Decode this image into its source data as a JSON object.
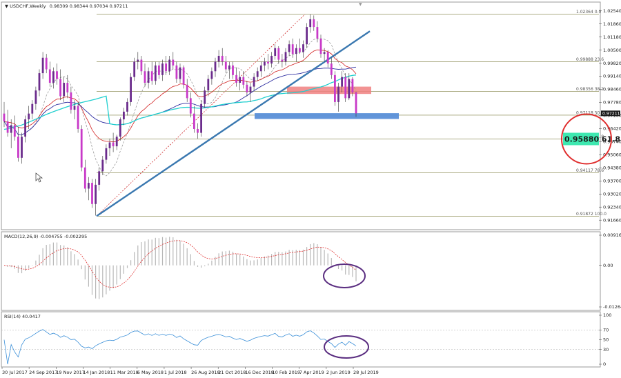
{
  "header": {
    "symbol_label": "USDCHF,Weekly",
    "ohlc_label": "0.98309 0.98344 0.97034 0.97211"
  },
  "colors": {
    "bull": "#6b2c8c",
    "bear": "#c839c8",
    "trend": "#3a78b0",
    "ma_red": "#d22020",
    "ma_blue": "#2c2ca0",
    "ma_cyan": "#1fcfcf",
    "ma_gray": "#909090",
    "zone_red": "#f08080",
    "zone_blue": "#5a8fd8",
    "circle_red": "#e03030",
    "circle_purple": "#5a2d80",
    "price_box": "#3ee8b0",
    "macd_hist": "#b8b8b8",
    "macd_signal": "#e03030",
    "rsi_line": "#3a8fd8"
  },
  "chart_data": [
    {
      "type": "candlestick",
      "price_axis": {
        "ylim": [
          0.9156,
          1.026
        ],
        "tick_labels": [
          "1.02540",
          "1.01860",
          "1.01180",
          "1.00500",
          "0.99820",
          "0.99140",
          "0.98460",
          "0.97780",
          "0.97100",
          "0.96420",
          "0.95740",
          "0.95060",
          "0.94380",
          "0.93700",
          "0.93020",
          "0.92340",
          "0.91660"
        ]
      },
      "time_axis": {
        "labels": [
          "30 Jul 2017",
          "24 Sep 2017",
          "19 Nov 2017",
          "14 Jan 2018",
          "11 Mar 2018",
          "6 May 2018",
          "1 Jul 2018",
          "26 Aug 2018",
          "21 Oct 2018",
          "16 Dec 2018",
          "10 Feb 2019",
          "7 Apr 2019",
          "2 Jun 2019",
          "28 Jul 2019"
        ]
      },
      "candles": [
        {
          "o": 0.972,
          "h": 0.978,
          "l": 0.965,
          "c": 0.968
        },
        {
          "o": 0.968,
          "h": 0.974,
          "l": 0.96,
          "c": 0.962
        },
        {
          "o": 0.962,
          "h": 0.969,
          "l": 0.954,
          "c": 0.966
        },
        {
          "o": 0.966,
          "h": 0.971,
          "l": 0.958,
          "c": 0.96
        },
        {
          "o": 0.96,
          "h": 0.965,
          "l": 0.947,
          "c": 0.949
        },
        {
          "o": 0.949,
          "h": 0.962,
          "l": 0.946,
          "c": 0.96
        },
        {
          "o": 0.96,
          "h": 0.971,
          "l": 0.957,
          "c": 0.969
        },
        {
          "o": 0.969,
          "h": 0.976,
          "l": 0.964,
          "c": 0.972
        },
        {
          "o": 0.972,
          "h": 0.979,
          "l": 0.969,
          "c": 0.977
        },
        {
          "o": 0.977,
          "h": 0.986,
          "l": 0.974,
          "c": 0.984
        },
        {
          "o": 0.984,
          "h": 0.995,
          "l": 0.981,
          "c": 0.993
        },
        {
          "o": 0.993,
          "h": 1.004,
          "l": 0.99,
          "c": 1.001
        },
        {
          "o": 1.001,
          "h": 1.003,
          "l": 0.993,
          "c": 0.995
        },
        {
          "o": 0.995,
          "h": 0.999,
          "l": 0.986,
          "c": 0.988
        },
        {
          "o": 0.988,
          "h": 0.996,
          "l": 0.985,
          "c": 0.994
        },
        {
          "o": 0.994,
          "h": 0.998,
          "l": 0.987,
          "c": 0.99
        },
        {
          "o": 0.99,
          "h": 0.995,
          "l": 0.979,
          "c": 0.981
        },
        {
          "o": 0.981,
          "h": 0.991,
          "l": 0.978,
          "c": 0.988
        },
        {
          "o": 0.988,
          "h": 0.992,
          "l": 0.98,
          "c": 0.983
        },
        {
          "o": 0.983,
          "h": 0.986,
          "l": 0.972,
          "c": 0.974
        },
        {
          "o": 0.974,
          "h": 0.979,
          "l": 0.969,
          "c": 0.976
        },
        {
          "o": 0.976,
          "h": 0.978,
          "l": 0.962,
          "c": 0.964
        },
        {
          "o": 0.964,
          "h": 0.966,
          "l": 0.942,
          "c": 0.944
        },
        {
          "o": 0.944,
          "h": 0.948,
          "l": 0.931,
          "c": 0.933
        },
        {
          "o": 0.933,
          "h": 0.939,
          "l": 0.927,
          "c": 0.936
        },
        {
          "o": 0.936,
          "h": 0.938,
          "l": 0.923,
          "c": 0.925
        },
        {
          "o": 0.925,
          "h": 0.938,
          "l": 0.919,
          "c": 0.935
        },
        {
          "o": 0.935,
          "h": 0.944,
          "l": 0.932,
          "c": 0.942
        },
        {
          "o": 0.942,
          "h": 0.95,
          "l": 0.94,
          "c": 0.948
        },
        {
          "o": 0.948,
          "h": 0.956,
          "l": 0.946,
          "c": 0.954
        },
        {
          "o": 0.954,
          "h": 0.959,
          "l": 0.95,
          "c": 0.957
        },
        {
          "o": 0.957,
          "h": 0.962,
          "l": 0.952,
          "c": 0.955
        },
        {
          "o": 0.955,
          "h": 0.961,
          "l": 0.953,
          "c": 0.96
        },
        {
          "o": 0.96,
          "h": 0.97,
          "l": 0.958,
          "c": 0.969
        },
        {
          "o": 0.969,
          "h": 0.975,
          "l": 0.966,
          "c": 0.973
        },
        {
          "o": 0.973,
          "h": 0.98,
          "l": 0.971,
          "c": 0.978
        },
        {
          "o": 0.978,
          "h": 0.993,
          "l": 0.976,
          "c": 0.991
        },
        {
          "o": 0.991,
          "h": 1.001,
          "l": 0.989,
          "c": 0.999
        },
        {
          "o": 0.999,
          "h": 1.004,
          "l": 0.995,
          "c": 1.0
        },
        {
          "o": 1.0,
          "h": 1.002,
          "l": 0.992,
          "c": 0.994
        },
        {
          "o": 0.994,
          "h": 0.998,
          "l": 0.986,
          "c": 0.988
        },
        {
          "o": 0.988,
          "h": 0.996,
          "l": 0.985,
          "c": 0.994
        },
        {
          "o": 0.994,
          "h": 0.999,
          "l": 0.987,
          "c": 0.989
        },
        {
          "o": 0.989,
          "h": 0.999,
          "l": 0.987,
          "c": 0.997
        },
        {
          "o": 0.997,
          "h": 0.999,
          "l": 0.99,
          "c": 0.992
        },
        {
          "o": 0.992,
          "h": 1.0,
          "l": 0.989,
          "c": 0.998
        },
        {
          "o": 0.998,
          "h": 1.002,
          "l": 0.992,
          "c": 0.994
        },
        {
          "o": 0.994,
          "h": 1.002,
          "l": 0.992,
          "c": 1.0
        },
        {
          "o": 1.0,
          "h": 1.004,
          "l": 0.995,
          "c": 0.997
        },
        {
          "o": 0.997,
          "h": 0.999,
          "l": 0.988,
          "c": 0.99
        },
        {
          "o": 0.99,
          "h": 0.998,
          "l": 0.988,
          "c": 0.996
        },
        {
          "o": 0.996,
          "h": 0.997,
          "l": 0.985,
          "c": 0.987
        },
        {
          "o": 0.987,
          "h": 0.99,
          "l": 0.978,
          "c": 0.98
        },
        {
          "o": 0.98,
          "h": 0.983,
          "l": 0.97,
          "c": 0.972
        },
        {
          "o": 0.972,
          "h": 0.976,
          "l": 0.962,
          "c": 0.964
        },
        {
          "o": 0.964,
          "h": 0.967,
          "l": 0.959,
          "c": 0.962
        },
        {
          "o": 0.962,
          "h": 0.979,
          "l": 0.96,
          "c": 0.977
        },
        {
          "o": 0.977,
          "h": 0.986,
          "l": 0.975,
          "c": 0.984
        },
        {
          "o": 0.984,
          "h": 0.992,
          "l": 0.981,
          "c": 0.99
        },
        {
          "o": 0.99,
          "h": 0.996,
          "l": 0.987,
          "c": 0.994
        },
        {
          "o": 0.994,
          "h": 1.001,
          "l": 0.991,
          "c": 0.999
        },
        {
          "o": 0.999,
          "h": 1.005,
          "l": 0.996,
          "c": 1.002
        },
        {
          "o": 1.002,
          "h": 1.006,
          "l": 0.997,
          "c": 0.999
        },
        {
          "o": 0.999,
          "h": 1.002,
          "l": 0.993,
          "c": 0.995
        },
        {
          "o": 0.995,
          "h": 0.999,
          "l": 0.99,
          "c": 0.997
        },
        {
          "o": 0.997,
          "h": 0.999,
          "l": 0.99,
          "c": 0.992
        },
        {
          "o": 0.992,
          "h": 0.996,
          "l": 0.986,
          "c": 0.988
        },
        {
          "o": 0.988,
          "h": 0.994,
          "l": 0.984,
          "c": 0.991
        },
        {
          "o": 0.991,
          "h": 0.994,
          "l": 0.985,
          "c": 0.987
        },
        {
          "o": 0.987,
          "h": 0.989,
          "l": 0.981,
          "c": 0.983
        },
        {
          "o": 0.983,
          "h": 0.988,
          "l": 0.978,
          "c": 0.986
        },
        {
          "o": 0.986,
          "h": 0.993,
          "l": 0.984,
          "c": 0.991
        },
        {
          "o": 0.991,
          "h": 0.996,
          "l": 0.989,
          "c": 0.994
        },
        {
          "o": 0.994,
          "h": 0.999,
          "l": 0.991,
          "c": 0.997
        },
        {
          "o": 0.997,
          "h": 1.001,
          "l": 0.994,
          "c": 0.999
        },
        {
          "o": 0.999,
          "h": 1.003,
          "l": 0.995,
          "c": 0.998
        },
        {
          "o": 0.998,
          "h": 1.004,
          "l": 0.996,
          "c": 1.002
        },
        {
          "o": 1.002,
          "h": 1.008,
          "l": 1.0,
          "c": 1.006
        },
        {
          "o": 1.006,
          "h": 1.007,
          "l": 0.998,
          "c": 1.0
        },
        {
          "o": 1.0,
          "h": 1.003,
          "l": 0.996,
          "c": 0.999
        },
        {
          "o": 0.999,
          "h": 1.006,
          "l": 0.997,
          "c": 1.004
        },
        {
          "o": 1.004,
          "h": 1.01,
          "l": 1.002,
          "c": 1.008
        },
        {
          "o": 1.008,
          "h": 1.011,
          "l": 1.001,
          "c": 1.003
        },
        {
          "o": 1.003,
          "h": 1.008,
          "l": 0.999,
          "c": 1.006
        },
        {
          "o": 1.006,
          "h": 1.011,
          "l": 1.003,
          "c": 1.004
        },
        {
          "o": 1.004,
          "h": 1.01,
          "l": 1.001,
          "c": 1.008
        },
        {
          "o": 1.008,
          "h": 1.019,
          "l": 1.006,
          "c": 1.017
        },
        {
          "o": 1.017,
          "h": 1.0236,
          "l": 1.014,
          "c": 1.021
        },
        {
          "o": 1.021,
          "h": 1.023,
          "l": 1.015,
          "c": 1.017
        },
        {
          "o": 1.017,
          "h": 1.02,
          "l": 1.009,
          "c": 1.011
        },
        {
          "o": 1.011,
          "h": 1.013,
          "l": 1.001,
          "c": 1.003
        },
        {
          "o": 1.003,
          "h": 1.006,
          "l": 0.999,
          "c": 1.004
        },
        {
          "o": 1.004,
          "h": 1.005,
          "l": 0.996,
          "c": 0.998
        },
        {
          "o": 0.998,
          "h": 1.001,
          "l": 0.99,
          "c": 0.992
        },
        {
          "o": 0.992,
          "h": 0.994,
          "l": 0.976,
          "c": 0.978
        },
        {
          "o": 0.978,
          "h": 0.988,
          "l": 0.973,
          "c": 0.986
        },
        {
          "o": 0.986,
          "h": 0.994,
          "l": 0.983,
          "c": 0.991
        },
        {
          "o": 0.991,
          "h": 0.993,
          "l": 0.978,
          "c": 0.98
        },
        {
          "o": 0.98,
          "h": 0.993,
          "l": 0.979,
          "c": 0.99
        },
        {
          "o": 0.99,
          "h": 0.991,
          "l": 0.981,
          "c": 0.983
        },
        {
          "o": 0.983,
          "h": 0.9834,
          "l": 0.9703,
          "c": 0.9721
        }
      ]
    },
    {
      "type": "annotations",
      "fib_levels": [
        {
          "label": "1.02364 0.0",
          "price": 1.02364
        },
        {
          "label": "0.99888 23.6",
          "price": 0.99888
        },
        {
          "label": "0.98356 38.2",
          "price": 0.98356
        },
        {
          "label": "0.97118 50.0",
          "price": 0.97118
        },
        {
          "label": "0.95880 61.8",
          "price": 0.9588
        },
        {
          "label": "0.94117 78.6",
          "price": 0.94117
        },
        {
          "label": "0.91872 100.0",
          "price": 0.91872
        }
      ],
      "current_price_label": "0.97211",
      "current_price": 0.97211,
      "highlight_label": "0.95880  61.8",
      "highlight_price": 0.9588
    },
    {
      "type": "line",
      "title": "MACD(12,26,9) -0.004755 -0.002295",
      "tick_labels": [
        "0.00916",
        "0.00",
        "-0.012643"
      ],
      "ylim": [
        -0.012643,
        0.00916
      ]
    },
    {
      "type": "line",
      "title": "RSI(14) 40.0417",
      "tick_labels": [
        "100",
        "70",
        "50",
        "30",
        "0"
      ],
      "ylim": [
        0,
        100
      ]
    }
  ]
}
